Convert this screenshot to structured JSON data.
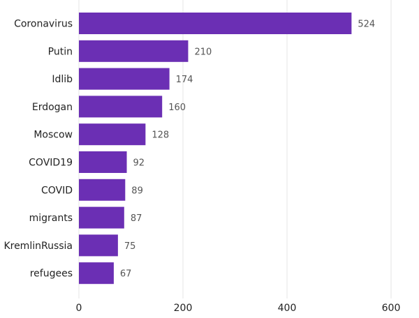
{
  "chart_data": {
    "type": "bar",
    "orientation": "horizontal",
    "categories": [
      "Coronavirus",
      "Putin",
      "Idlib",
      "Erdogan",
      "Moscow",
      "COVID19",
      "COVID",
      "migrants",
      "KremlinRussia",
      "refugees"
    ],
    "values": [
      524,
      210,
      174,
      160,
      128,
      92,
      89,
      87,
      75,
      67
    ],
    "title": "",
    "xlabel": "",
    "ylabel": "",
    "xlim": [
      0,
      600
    ],
    "xticks": [
      0,
      200,
      400,
      600
    ],
    "grid": "vertical",
    "legend": "none",
    "bar_color": "#6B2FB4"
  }
}
